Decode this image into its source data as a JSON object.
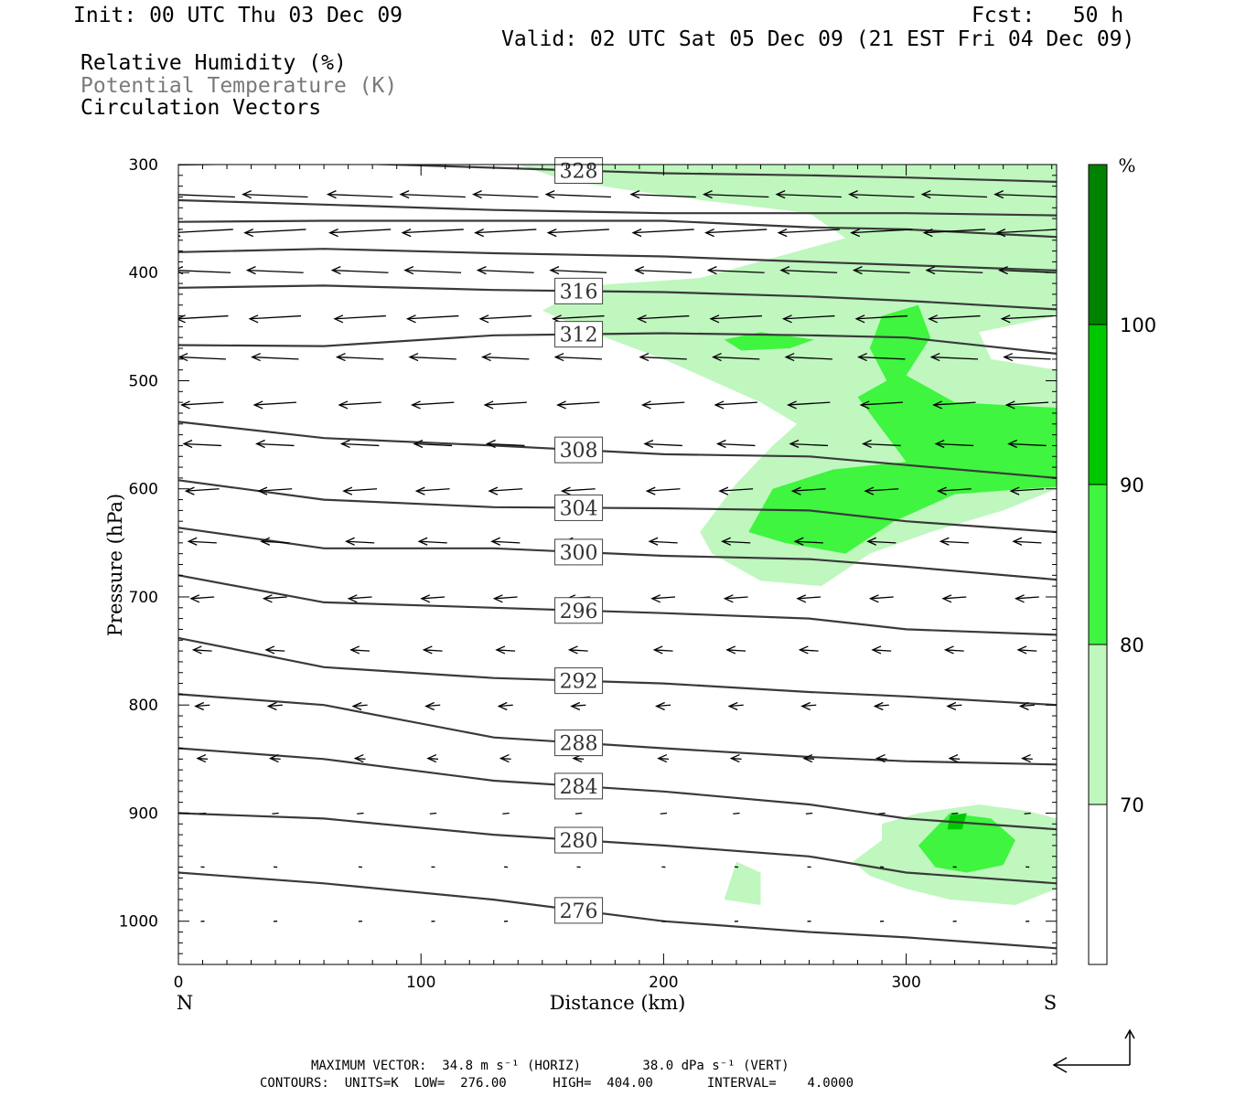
{
  "header": {
    "init": "Init: 00 UTC Thu 03 Dec 09",
    "fcst": "Fcst:   50 h",
    "valid": "Valid: 02 UTC Sat 05 Dec 09 (21 EST Fri 04 Dec 09)",
    "legend": [
      "Relative Humidity (%)",
      "Potential Temperature (K)",
      "Circulation Vectors"
    ]
  },
  "chart_data": {
    "type": "cross-section",
    "xlabel": "Distance (km)",
    "ylabel": "Pressure (hPa)",
    "xlim": [
      0,
      362
    ],
    "ylim": [
      300,
      1040
    ],
    "x_ticks": [
      0,
      100,
      200,
      300
    ],
    "y_ticks": [
      300,
      400,
      500,
      600,
      700,
      800,
      900,
      1000
    ],
    "x_end_labels": {
      "left": "N",
      "right": "S"
    },
    "colorbar": {
      "unit": "%",
      "levels": [
        70,
        80,
        90,
        100
      ],
      "colors": [
        "#ffffff",
        "#bff7bf",
        "#3ff53f",
        "#00c800",
        "#008200"
      ]
    },
    "theta_contours": [
      {
        "label": "328",
        "x": [
          0,
          60,
          130,
          200,
          260,
          300,
          362
        ],
        "p": [
          300,
          298,
          303,
          308,
          310,
          312,
          316
        ]
      },
      {
        "label": "",
        "x": [
          0,
          60,
          130,
          200,
          260,
          300,
          362
        ],
        "p": [
          333,
          337,
          342,
          345,
          345,
          345,
          347
        ]
      },
      {
        "label": "",
        "x": [
          0,
          60,
          130,
          200,
          260,
          300,
          362
        ],
        "p": [
          353,
          352,
          352,
          352,
          358,
          360,
          367
        ]
      },
      {
        "label": "",
        "x": [
          0,
          60,
          130,
          200,
          260,
          300,
          362
        ],
        "p": [
          381,
          378,
          382,
          385,
          390,
          393,
          398
        ]
      },
      {
        "label": "316",
        "x": [
          0,
          60,
          130,
          200,
          260,
          300,
          362
        ],
        "p": [
          414,
          412,
          416,
          418,
          422,
          426,
          434
        ]
      },
      {
        "label": "312",
        "x": [
          0,
          60,
          130,
          200,
          260,
          300,
          362
        ],
        "p": [
          467,
          468,
          458,
          456,
          458,
          460,
          475
        ]
      },
      {
        "label": "308",
        "x": [
          0,
          60,
          130,
          200,
          260,
          300,
          362
        ],
        "p": [
          538,
          553,
          560,
          568,
          570,
          578,
          590
        ]
      },
      {
        "label": "304",
        "x": [
          0,
          60,
          130,
          200,
          260,
          300,
          362
        ],
        "p": [
          592,
          610,
          617,
          618,
          620,
          630,
          640
        ]
      },
      {
        "label": "300",
        "x": [
          0,
          60,
          130,
          200,
          260,
          300,
          362
        ],
        "p": [
          636,
          655,
          655,
          662,
          665,
          672,
          684
        ]
      },
      {
        "label": "296",
        "x": [
          0,
          60,
          130,
          200,
          260,
          300,
          362
        ],
        "p": [
          680,
          705,
          710,
          715,
          720,
          730,
          735
        ]
      },
      {
        "label": "292",
        "x": [
          0,
          60,
          130,
          200,
          260,
          300,
          362
        ],
        "p": [
          738,
          765,
          775,
          780,
          788,
          792,
          800
        ]
      },
      {
        "label": "288",
        "x": [
          0,
          60,
          130,
          200,
          260,
          300,
          362
        ],
        "p": [
          790,
          800,
          830,
          840,
          848,
          852,
          855
        ]
      },
      {
        "label": "284",
        "x": [
          0,
          60,
          130,
          200,
          260,
          300,
          362
        ],
        "p": [
          840,
          850,
          870,
          880,
          892,
          905,
          915
        ]
      },
      {
        "label": "280",
        "x": [
          0,
          60,
          130,
          200,
          260,
          300,
          362
        ],
        "p": [
          900,
          905,
          920,
          930,
          940,
          955,
          965
        ]
      },
      {
        "label": "276",
        "x": [
          0,
          60,
          130,
          200,
          260,
          300,
          362
        ],
        "p": [
          955,
          965,
          980,
          1000,
          1010,
          1015,
          1025
        ]
      }
    ],
    "vectors": {
      "x": [
        10,
        40,
        75,
        105,
        135,
        165,
        200,
        230,
        260,
        290,
        320,
        350
      ],
      "p": [
        330,
        360,
        400,
        440,
        480,
        520,
        560,
        600,
        650,
        700,
        750,
        800,
        850,
        900,
        950,
        1000
      ],
      "max_u_ms": 34.8,
      "max_w_dpas": 38.0
    },
    "annotations": [
      {
        "label": "MAXIMUM VECTOR:",
        "text": "MAXIMUM VECTOR:  34.8 m s⁻¹ (HORIZ)        38.0 dPa s⁻¹ (VERT)"
      },
      {
        "label": "CONTOURS:",
        "text": "CONTOURS:  UNITS=K  LOW=  276.00      HIGH=  404.00       INTERVAL=    4.0000"
      }
    ]
  }
}
